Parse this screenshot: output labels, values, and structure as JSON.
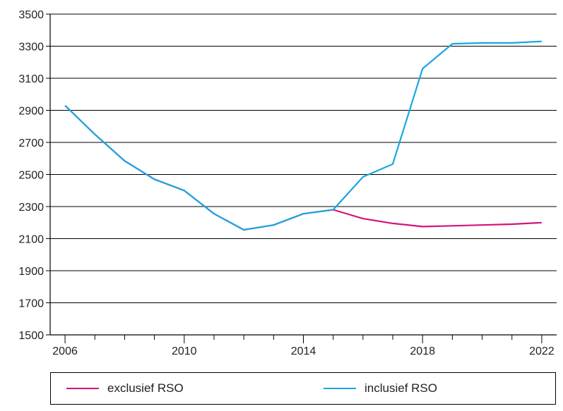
{
  "chart_data": {
    "type": "line",
    "x": [
      2006,
      2007,
      2008,
      2009,
      2010,
      2011,
      2012,
      2013,
      2014,
      2015,
      2016,
      2017,
      2018,
      2019,
      2020,
      2021,
      2022
    ],
    "xlim": [
      2005.5,
      2022.5
    ],
    "ylim": [
      1500,
      3500
    ],
    "xticks": [
      2006,
      2010,
      2014,
      2018,
      2022
    ],
    "yticks": [
      1500,
      1700,
      1900,
      2100,
      2300,
      2500,
      2700,
      2900,
      3100,
      3300,
      3500
    ],
    "grid": "horizontal",
    "legend_position": "bottom",
    "series": [
      {
        "name": "exclusief RSO",
        "color": "#d4137b",
        "values": [
          2930,
          2750,
          2585,
          2470,
          2400,
          2255,
          2155,
          2185,
          2255,
          2280,
          2225,
          2195,
          2175,
          2180,
          2185,
          2190,
          2200
        ]
      },
      {
        "name": "inclusief RSO",
        "color": "#1aa7e0",
        "values": [
          2930,
          2750,
          2585,
          2470,
          2400,
          2255,
          2155,
          2185,
          2255,
          2280,
          2485,
          2565,
          3160,
          3315,
          3320,
          3320,
          3330
        ]
      }
    ]
  }
}
